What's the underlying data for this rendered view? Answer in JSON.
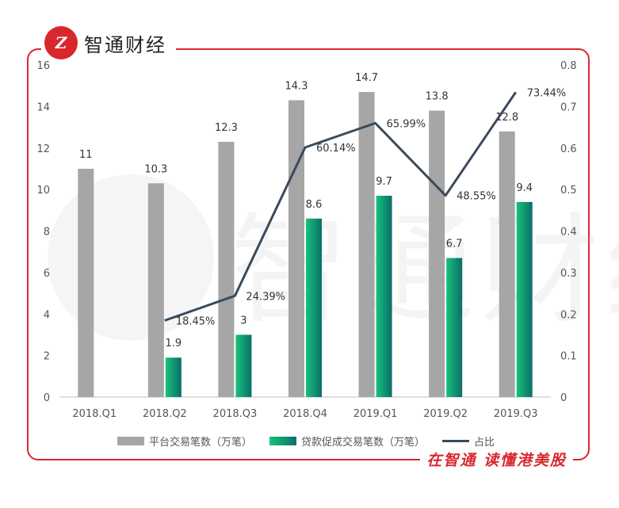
{
  "brand": {
    "logo_mark": "Z",
    "name": "智通财经",
    "slogan": "在智通 读懂港美股",
    "watermark": "智通财经"
  },
  "colors": {
    "frame": "#d9272e",
    "bar_gray": "#a6a6a6",
    "bar_green_top": "#17c27a",
    "bar_green_bottom": "#0a6e6a",
    "line": "#3a4a5c"
  },
  "chart_data": {
    "type": "bar",
    "categories": [
      "2018.Q1",
      "2018.Q2",
      "2018.Q3",
      "2018.Q4",
      "2019.Q1",
      "2019.Q2",
      "2019.Q3"
    ],
    "series": [
      {
        "name": "平台交易笔数（万笔）",
        "type": "bar",
        "axis": "left",
        "values": [
          11,
          10.3,
          12.3,
          14.3,
          14.7,
          13.8,
          12.8
        ],
        "labels": [
          "11",
          "10.3",
          "12.3",
          "14.3",
          "14.7",
          "13.8",
          "12.8"
        ]
      },
      {
        "name": "贷款促成交易笔数（万笔）",
        "type": "bar",
        "axis": "left",
        "values": [
          null,
          1.9,
          3,
          8.6,
          9.7,
          6.7,
          9.4
        ],
        "labels": [
          "",
          "1.9",
          "3",
          "8.6",
          "9.7",
          "6.7",
          "9.4"
        ]
      },
      {
        "name": "占比",
        "type": "line",
        "axis": "right",
        "values": [
          null,
          0.1845,
          0.2439,
          0.6014,
          0.6599,
          0.4855,
          0.7344
        ],
        "labels": [
          "",
          "18.45%",
          "24.39%",
          "60.14%",
          "65.99%",
          "48.55%",
          "73.44%"
        ]
      }
    ],
    "left_axis": {
      "ylim": [
        0,
        16
      ],
      "ticks": [
        "0",
        "2",
        "4",
        "6",
        "8",
        "10",
        "12",
        "14",
        "16"
      ]
    },
    "right_axis": {
      "ylim": [
        0,
        0.8
      ],
      "ticks": [
        "0",
        "0.1",
        "0.2",
        "0.3",
        "0.4",
        "0.5",
        "0.6",
        "0.7",
        "0.8"
      ]
    },
    "grid": false,
    "legend": "bottom"
  }
}
